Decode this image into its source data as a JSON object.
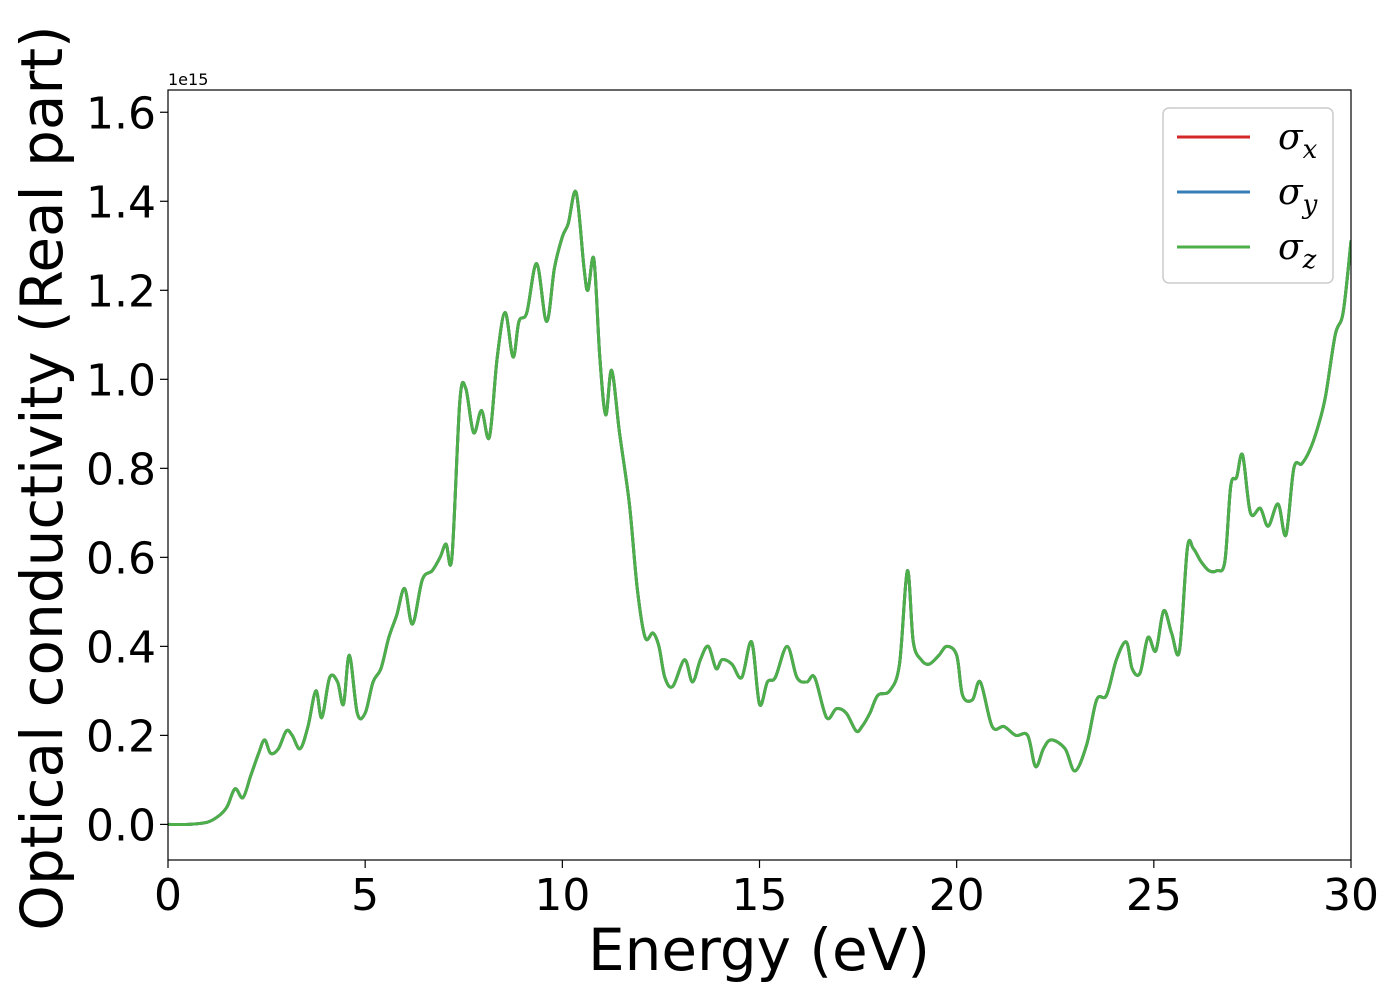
{
  "chart_data": {
    "type": "line",
    "title": "",
    "xlabel": "Energy (eV)",
    "ylabel": "Optical conductivity (Real part)",
    "y_offset_label": "1e15",
    "xlim": [
      0,
      30
    ],
    "ylim": [
      -0.08,
      1.65
    ],
    "x_ticks": [
      0,
      5,
      10,
      15,
      20,
      25,
      30
    ],
    "x_tick_labels": [
      "0",
      "5",
      "10",
      "15",
      "20",
      "25",
      "30"
    ],
    "y_ticks": [
      0.0,
      0.2,
      0.4,
      0.6,
      0.8,
      1.0,
      1.2,
      1.4,
      1.6
    ],
    "y_tick_labels": [
      "0.0",
      "0.2",
      "0.4",
      "0.6",
      "0.8",
      "1.0",
      "1.2",
      "1.4",
      "1.6"
    ],
    "grid": false,
    "legend_position": "top-right",
    "x": [
      0,
      0.5,
      1.0,
      1.3,
      1.5,
      1.7,
      1.9,
      2.1,
      2.3,
      2.45,
      2.6,
      2.8,
      3.0,
      3.15,
      3.35,
      3.55,
      3.75,
      3.9,
      4.1,
      4.3,
      4.45,
      4.6,
      4.8,
      5.0,
      5.2,
      5.4,
      5.6,
      5.8,
      6.0,
      6.2,
      6.45,
      6.7,
      6.9,
      7.05,
      7.2,
      7.4,
      7.55,
      7.75,
      7.95,
      8.15,
      8.35,
      8.55,
      8.75,
      8.9,
      9.1,
      9.35,
      9.6,
      9.8,
      10.0,
      10.15,
      10.35,
      10.55,
      10.65,
      10.8,
      10.95,
      11.1,
      11.25,
      11.45,
      11.7,
      11.9,
      12.1,
      12.3,
      12.45,
      12.6,
      12.8,
      13.1,
      13.3,
      13.5,
      13.7,
      13.9,
      14.05,
      14.3,
      14.55,
      14.8,
      15.0,
      15.2,
      15.4,
      15.7,
      15.95,
      16.2,
      16.4,
      16.7,
      16.95,
      17.2,
      17.45,
      17.6,
      17.8,
      18.0,
      18.3,
      18.55,
      18.75,
      18.9,
      19.1,
      19.3,
      19.55,
      19.75,
      20.0,
      20.15,
      20.4,
      20.6,
      20.9,
      21.2,
      21.5,
      21.8,
      22.0,
      22.2,
      22.4,
      22.75,
      23.0,
      23.3,
      23.55,
      23.8,
      24.05,
      24.3,
      24.45,
      24.65,
      24.85,
      25.05,
      25.25,
      25.45,
      25.65,
      25.85,
      26.0,
      26.2,
      26.4,
      26.6,
      26.8,
      26.95,
      27.1,
      27.25,
      27.45,
      27.7,
      27.9,
      28.15,
      28.35,
      28.55,
      28.75,
      28.95,
      29.15,
      29.35,
      29.6,
      29.8,
      30.0
    ],
    "series": [
      {
        "name": "σx",
        "color": "#d62728",
        "values": [
          0,
          0.0,
          0.005,
          0.02,
          0.04,
          0.08,
          0.06,
          0.11,
          0.16,
          0.19,
          0.16,
          0.17,
          0.21,
          0.2,
          0.17,
          0.22,
          0.3,
          0.24,
          0.33,
          0.32,
          0.27,
          0.38,
          0.25,
          0.25,
          0.32,
          0.35,
          0.42,
          0.47,
          0.53,
          0.45,
          0.55,
          0.57,
          0.6,
          0.63,
          0.6,
          0.95,
          0.98,
          0.88,
          0.93,
          0.87,
          1.05,
          1.15,
          1.05,
          1.13,
          1.15,
          1.26,
          1.13,
          1.25,
          1.32,
          1.35,
          1.42,
          1.25,
          1.2,
          1.27,
          1.05,
          0.92,
          1.02,
          0.88,
          0.72,
          0.53,
          0.42,
          0.43,
          0.4,
          0.33,
          0.31,
          0.37,
          0.32,
          0.37,
          0.4,
          0.35,
          0.37,
          0.36,
          0.33,
          0.41,
          0.27,
          0.32,
          0.33,
          0.4,
          0.33,
          0.32,
          0.33,
          0.24,
          0.26,
          0.25,
          0.21,
          0.22,
          0.25,
          0.29,
          0.3,
          0.36,
          0.57,
          0.41,
          0.37,
          0.36,
          0.38,
          0.4,
          0.38,
          0.29,
          0.28,
          0.32,
          0.22,
          0.22,
          0.2,
          0.2,
          0.13,
          0.17,
          0.19,
          0.17,
          0.12,
          0.18,
          0.28,
          0.29,
          0.37,
          0.41,
          0.35,
          0.34,
          0.42,
          0.39,
          0.48,
          0.43,
          0.39,
          0.62,
          0.62,
          0.59,
          0.57,
          0.57,
          0.59,
          0.76,
          0.78,
          0.83,
          0.7,
          0.71,
          0.67,
          0.72,
          0.65,
          0.8,
          0.81,
          0.84,
          0.89,
          0.96,
          1.1,
          1.15,
          1.31
        ]
      },
      {
        "name": "σy",
        "color": "#377eb8",
        "values": [
          0,
          0.0,
          0.005,
          0.02,
          0.04,
          0.08,
          0.06,
          0.11,
          0.16,
          0.19,
          0.16,
          0.17,
          0.21,
          0.2,
          0.17,
          0.22,
          0.3,
          0.24,
          0.33,
          0.32,
          0.27,
          0.38,
          0.25,
          0.25,
          0.32,
          0.35,
          0.42,
          0.47,
          0.53,
          0.45,
          0.55,
          0.57,
          0.6,
          0.63,
          0.6,
          0.95,
          0.98,
          0.88,
          0.93,
          0.87,
          1.05,
          1.15,
          1.05,
          1.13,
          1.15,
          1.26,
          1.13,
          1.25,
          1.32,
          1.35,
          1.42,
          1.25,
          1.2,
          1.27,
          1.05,
          0.92,
          1.02,
          0.88,
          0.72,
          0.53,
          0.42,
          0.43,
          0.4,
          0.33,
          0.31,
          0.37,
          0.32,
          0.37,
          0.4,
          0.35,
          0.37,
          0.36,
          0.33,
          0.41,
          0.27,
          0.32,
          0.33,
          0.4,
          0.33,
          0.32,
          0.33,
          0.24,
          0.26,
          0.25,
          0.21,
          0.22,
          0.25,
          0.29,
          0.3,
          0.36,
          0.57,
          0.41,
          0.37,
          0.36,
          0.38,
          0.4,
          0.38,
          0.29,
          0.28,
          0.32,
          0.22,
          0.22,
          0.2,
          0.2,
          0.13,
          0.17,
          0.19,
          0.17,
          0.12,
          0.18,
          0.28,
          0.29,
          0.37,
          0.41,
          0.35,
          0.34,
          0.42,
          0.39,
          0.48,
          0.43,
          0.39,
          0.62,
          0.62,
          0.59,
          0.57,
          0.57,
          0.59,
          0.76,
          0.78,
          0.83,
          0.7,
          0.71,
          0.67,
          0.72,
          0.65,
          0.8,
          0.81,
          0.84,
          0.89,
          0.96,
          1.1,
          1.15,
          1.31
        ]
      },
      {
        "name": "σz",
        "color": "#4daf4a",
        "values": [
          0,
          0.0,
          0.005,
          0.02,
          0.04,
          0.08,
          0.06,
          0.11,
          0.16,
          0.19,
          0.16,
          0.17,
          0.21,
          0.2,
          0.17,
          0.22,
          0.3,
          0.24,
          0.33,
          0.32,
          0.27,
          0.38,
          0.25,
          0.25,
          0.32,
          0.35,
          0.42,
          0.47,
          0.53,
          0.45,
          0.55,
          0.57,
          0.6,
          0.63,
          0.6,
          0.95,
          0.98,
          0.88,
          0.93,
          0.87,
          1.05,
          1.15,
          1.05,
          1.13,
          1.15,
          1.26,
          1.13,
          1.25,
          1.32,
          1.35,
          1.42,
          1.25,
          1.2,
          1.27,
          1.05,
          0.92,
          1.02,
          0.88,
          0.72,
          0.53,
          0.42,
          0.43,
          0.4,
          0.33,
          0.31,
          0.37,
          0.32,
          0.37,
          0.4,
          0.35,
          0.37,
          0.36,
          0.33,
          0.41,
          0.27,
          0.32,
          0.33,
          0.4,
          0.33,
          0.32,
          0.33,
          0.24,
          0.26,
          0.25,
          0.21,
          0.22,
          0.25,
          0.29,
          0.3,
          0.36,
          0.57,
          0.41,
          0.37,
          0.36,
          0.38,
          0.4,
          0.38,
          0.29,
          0.28,
          0.32,
          0.22,
          0.22,
          0.2,
          0.2,
          0.13,
          0.17,
          0.19,
          0.17,
          0.12,
          0.18,
          0.28,
          0.29,
          0.37,
          0.41,
          0.35,
          0.34,
          0.42,
          0.39,
          0.48,
          0.43,
          0.39,
          0.62,
          0.62,
          0.59,
          0.57,
          0.57,
          0.59,
          0.76,
          0.78,
          0.83,
          0.7,
          0.71,
          0.67,
          0.72,
          0.65,
          0.8,
          0.81,
          0.84,
          0.89,
          0.96,
          1.1,
          1.15,
          1.31
        ]
      }
    ],
    "legend": [
      {
        "symbol": "σ",
        "subscript": "x",
        "color": "#d62728"
      },
      {
        "symbol": "σ",
        "subscript": "y",
        "color": "#377eb8"
      },
      {
        "symbol": "σ",
        "subscript": "z",
        "color": "#4daf4a"
      }
    ]
  }
}
